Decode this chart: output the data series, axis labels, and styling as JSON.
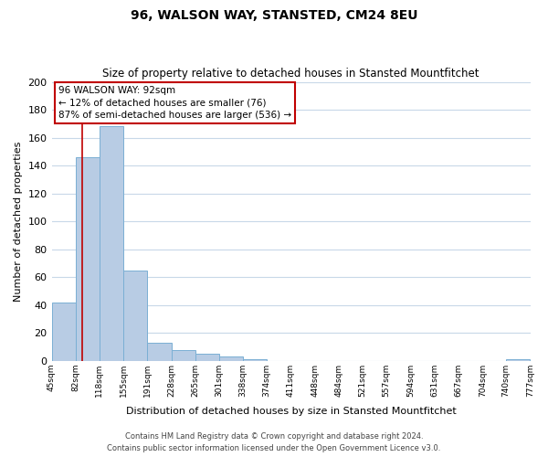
{
  "title": "96, WALSON WAY, STANSTED, CM24 8EU",
  "subtitle": "Size of property relative to detached houses in Stansted Mountfitchet",
  "xlabel": "Distribution of detached houses by size in Stansted Mountfitchet",
  "ylabel": "Number of detached properties",
  "bar_edges": [
    45,
    82,
    118,
    155,
    191,
    228,
    265,
    301,
    338,
    374,
    411,
    448,
    484,
    521,
    557,
    594,
    631,
    667,
    704,
    740,
    777
  ],
  "bar_heights": [
    42,
    146,
    168,
    65,
    13,
    8,
    5,
    3,
    1,
    0,
    0,
    0,
    0,
    0,
    0,
    0,
    0,
    0,
    0,
    1
  ],
  "bar_color": "#b8cce4",
  "bar_edge_color": "#7bafd4",
  "property_line_x": 92,
  "property_line_color": "#c00000",
  "annotation_line1": "96 WALSON WAY: 92sqm",
  "annotation_line2": "← 12% of detached houses are smaller (76)",
  "annotation_line3": "87% of semi-detached houses are larger (536) →",
  "annotation_box_color": "#ffffff",
  "annotation_box_edge": "#c00000",
  "ylim": [
    0,
    200
  ],
  "tick_labels": [
    "45sqm",
    "82sqm",
    "118sqm",
    "155sqm",
    "191sqm",
    "228sqm",
    "265sqm",
    "301sqm",
    "338sqm",
    "374sqm",
    "411sqm",
    "448sqm",
    "484sqm",
    "521sqm",
    "557sqm",
    "594sqm",
    "631sqm",
    "667sqm",
    "704sqm",
    "740sqm",
    "777sqm"
  ],
  "footer_line1": "Contains HM Land Registry data © Crown copyright and database right 2024.",
  "footer_line2": "Contains public sector information licensed under the Open Government Licence v3.0.",
  "bg_color": "#ffffff",
  "grid_color": "#c8d8e8",
  "yticks": [
    0,
    20,
    40,
    60,
    80,
    100,
    120,
    140,
    160,
    180,
    200
  ]
}
